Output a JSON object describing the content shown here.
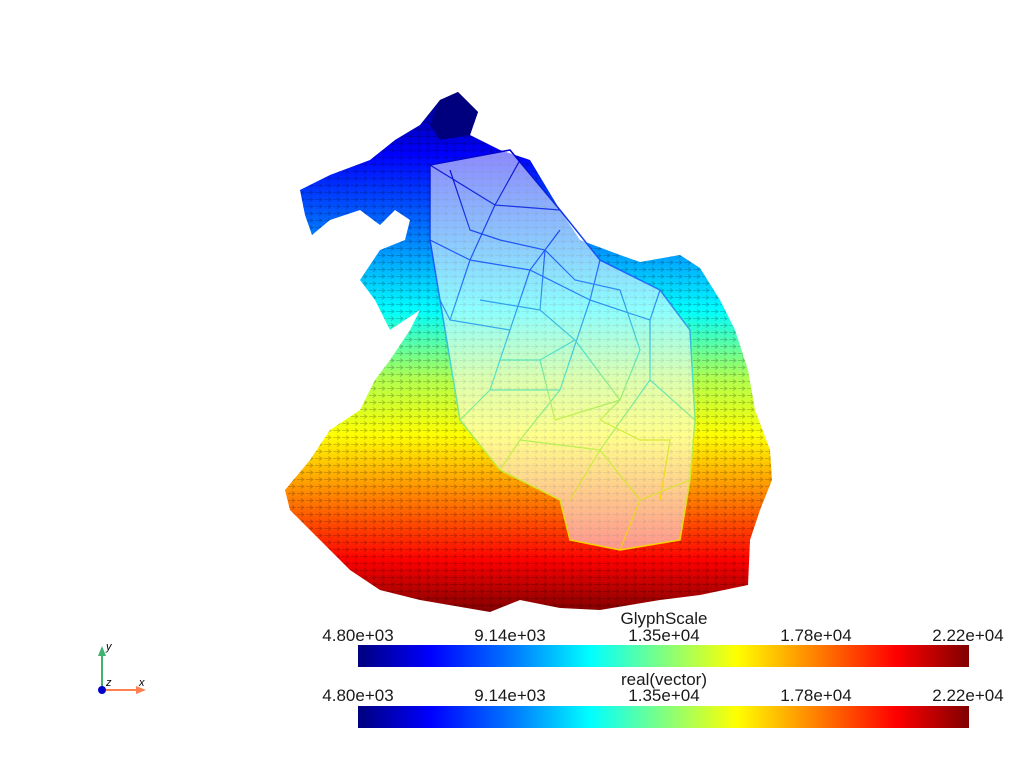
{
  "colorbars": [
    {
      "title": "GlyphScale",
      "ticks": [
        "4.80e+03",
        "9.14e+03",
        "1.35e+04",
        "1.78e+04",
        "2.22e+04"
      ]
    },
    {
      "title": "real(vector)",
      "ticks": [
        "4.80e+03",
        "9.14e+03",
        "1.35e+04",
        "1.78e+04",
        "2.22e+04"
      ]
    }
  ],
  "orientation_axes": {
    "x_label": "x",
    "y_label": "y",
    "z_label": "z",
    "x_color": "#ff7f50",
    "y_color": "#3cb371",
    "z_color": "#0000cd"
  },
  "colormap": [
    "#00007f",
    "#0000ff",
    "#0080ff",
    "#00ffff",
    "#80ff80",
    "#ffff00",
    "#ff8000",
    "#ff0000",
    "#800000"
  ]
}
